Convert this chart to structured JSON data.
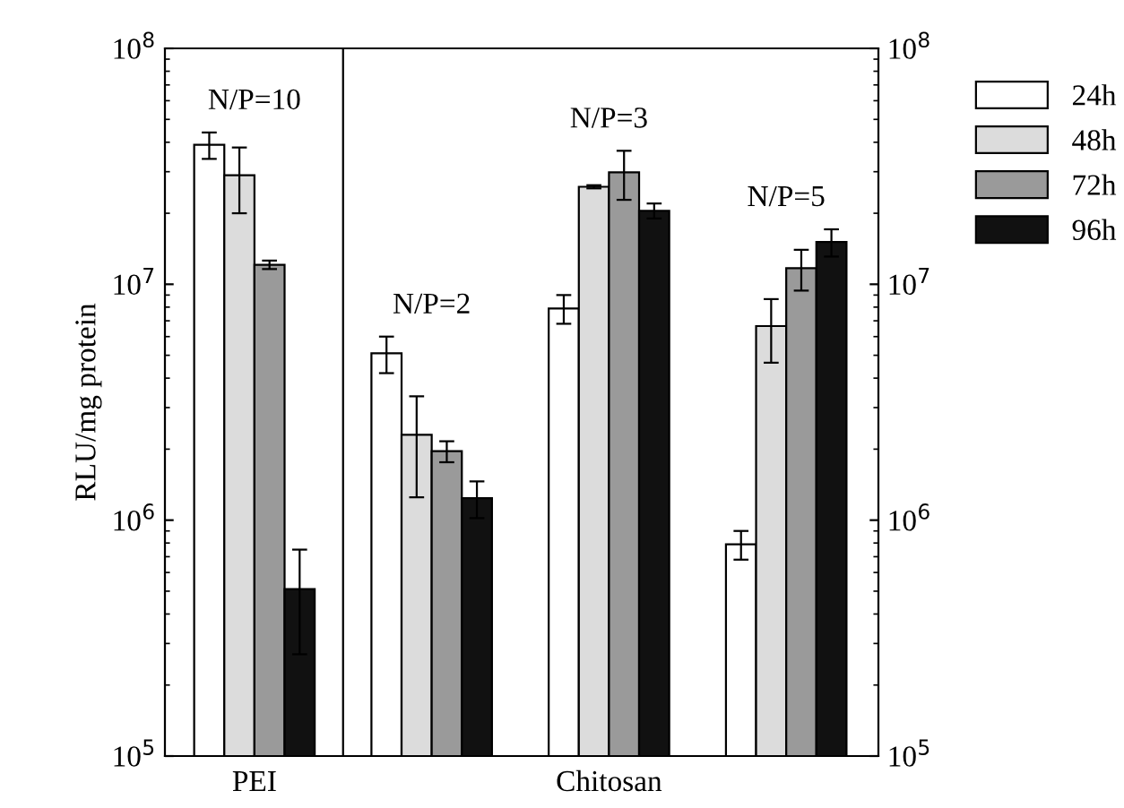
{
  "chart_data": {
    "type": "bar",
    "ylabel": "RLU/mg protein",
    "log": "y",
    "categories": [
      "N/P=10",
      "N/P=2",
      "N/P=3",
      "N/P=5"
    ],
    "series": [
      {
        "name": "24h",
        "color": "#ffffff",
        "values": [
          39000000,
          5100000,
          7900000,
          790000
        ],
        "errors": [
          5000000,
          900000,
          1100000,
          110000
        ]
      },
      {
        "name": "48h",
        "color": "#dcdcdc",
        "values": [
          29000000,
          2300000,
          25900000,
          6650000
        ],
        "errors": [
          9000000,
          1050000,
          400000,
          2000000
        ]
      },
      {
        "name": "72h",
        "color": "#9a9a9a",
        "values": [
          12100000,
          1960000,
          29800000,
          11700000
        ],
        "errors": [
          500000,
          200000,
          7000000,
          2300000
        ]
      },
      {
        "name": "96h",
        "color": "#111111",
        "values": [
          510000,
          1240000,
          20500000,
          15100000
        ],
        "errors": [
          240000,
          220000,
          1500000,
          2000000
        ]
      }
    ],
    "ylim": [
      100000,
      100000000
    ],
    "yticks": [
      {
        "value": 100000,
        "label": "10$^{5}$"
      },
      {
        "value": 1000000,
        "label": "10$^{6}$"
      },
      {
        "value": 10000000,
        "label": "10$^{7}$"
      },
      {
        "value": 100000000,
        "label": "10$^{8}$"
      }
    ],
    "annotations": [
      "PEI",
      "Chitosan"
    ],
    "legend": "top right",
    "grid": false
  }
}
